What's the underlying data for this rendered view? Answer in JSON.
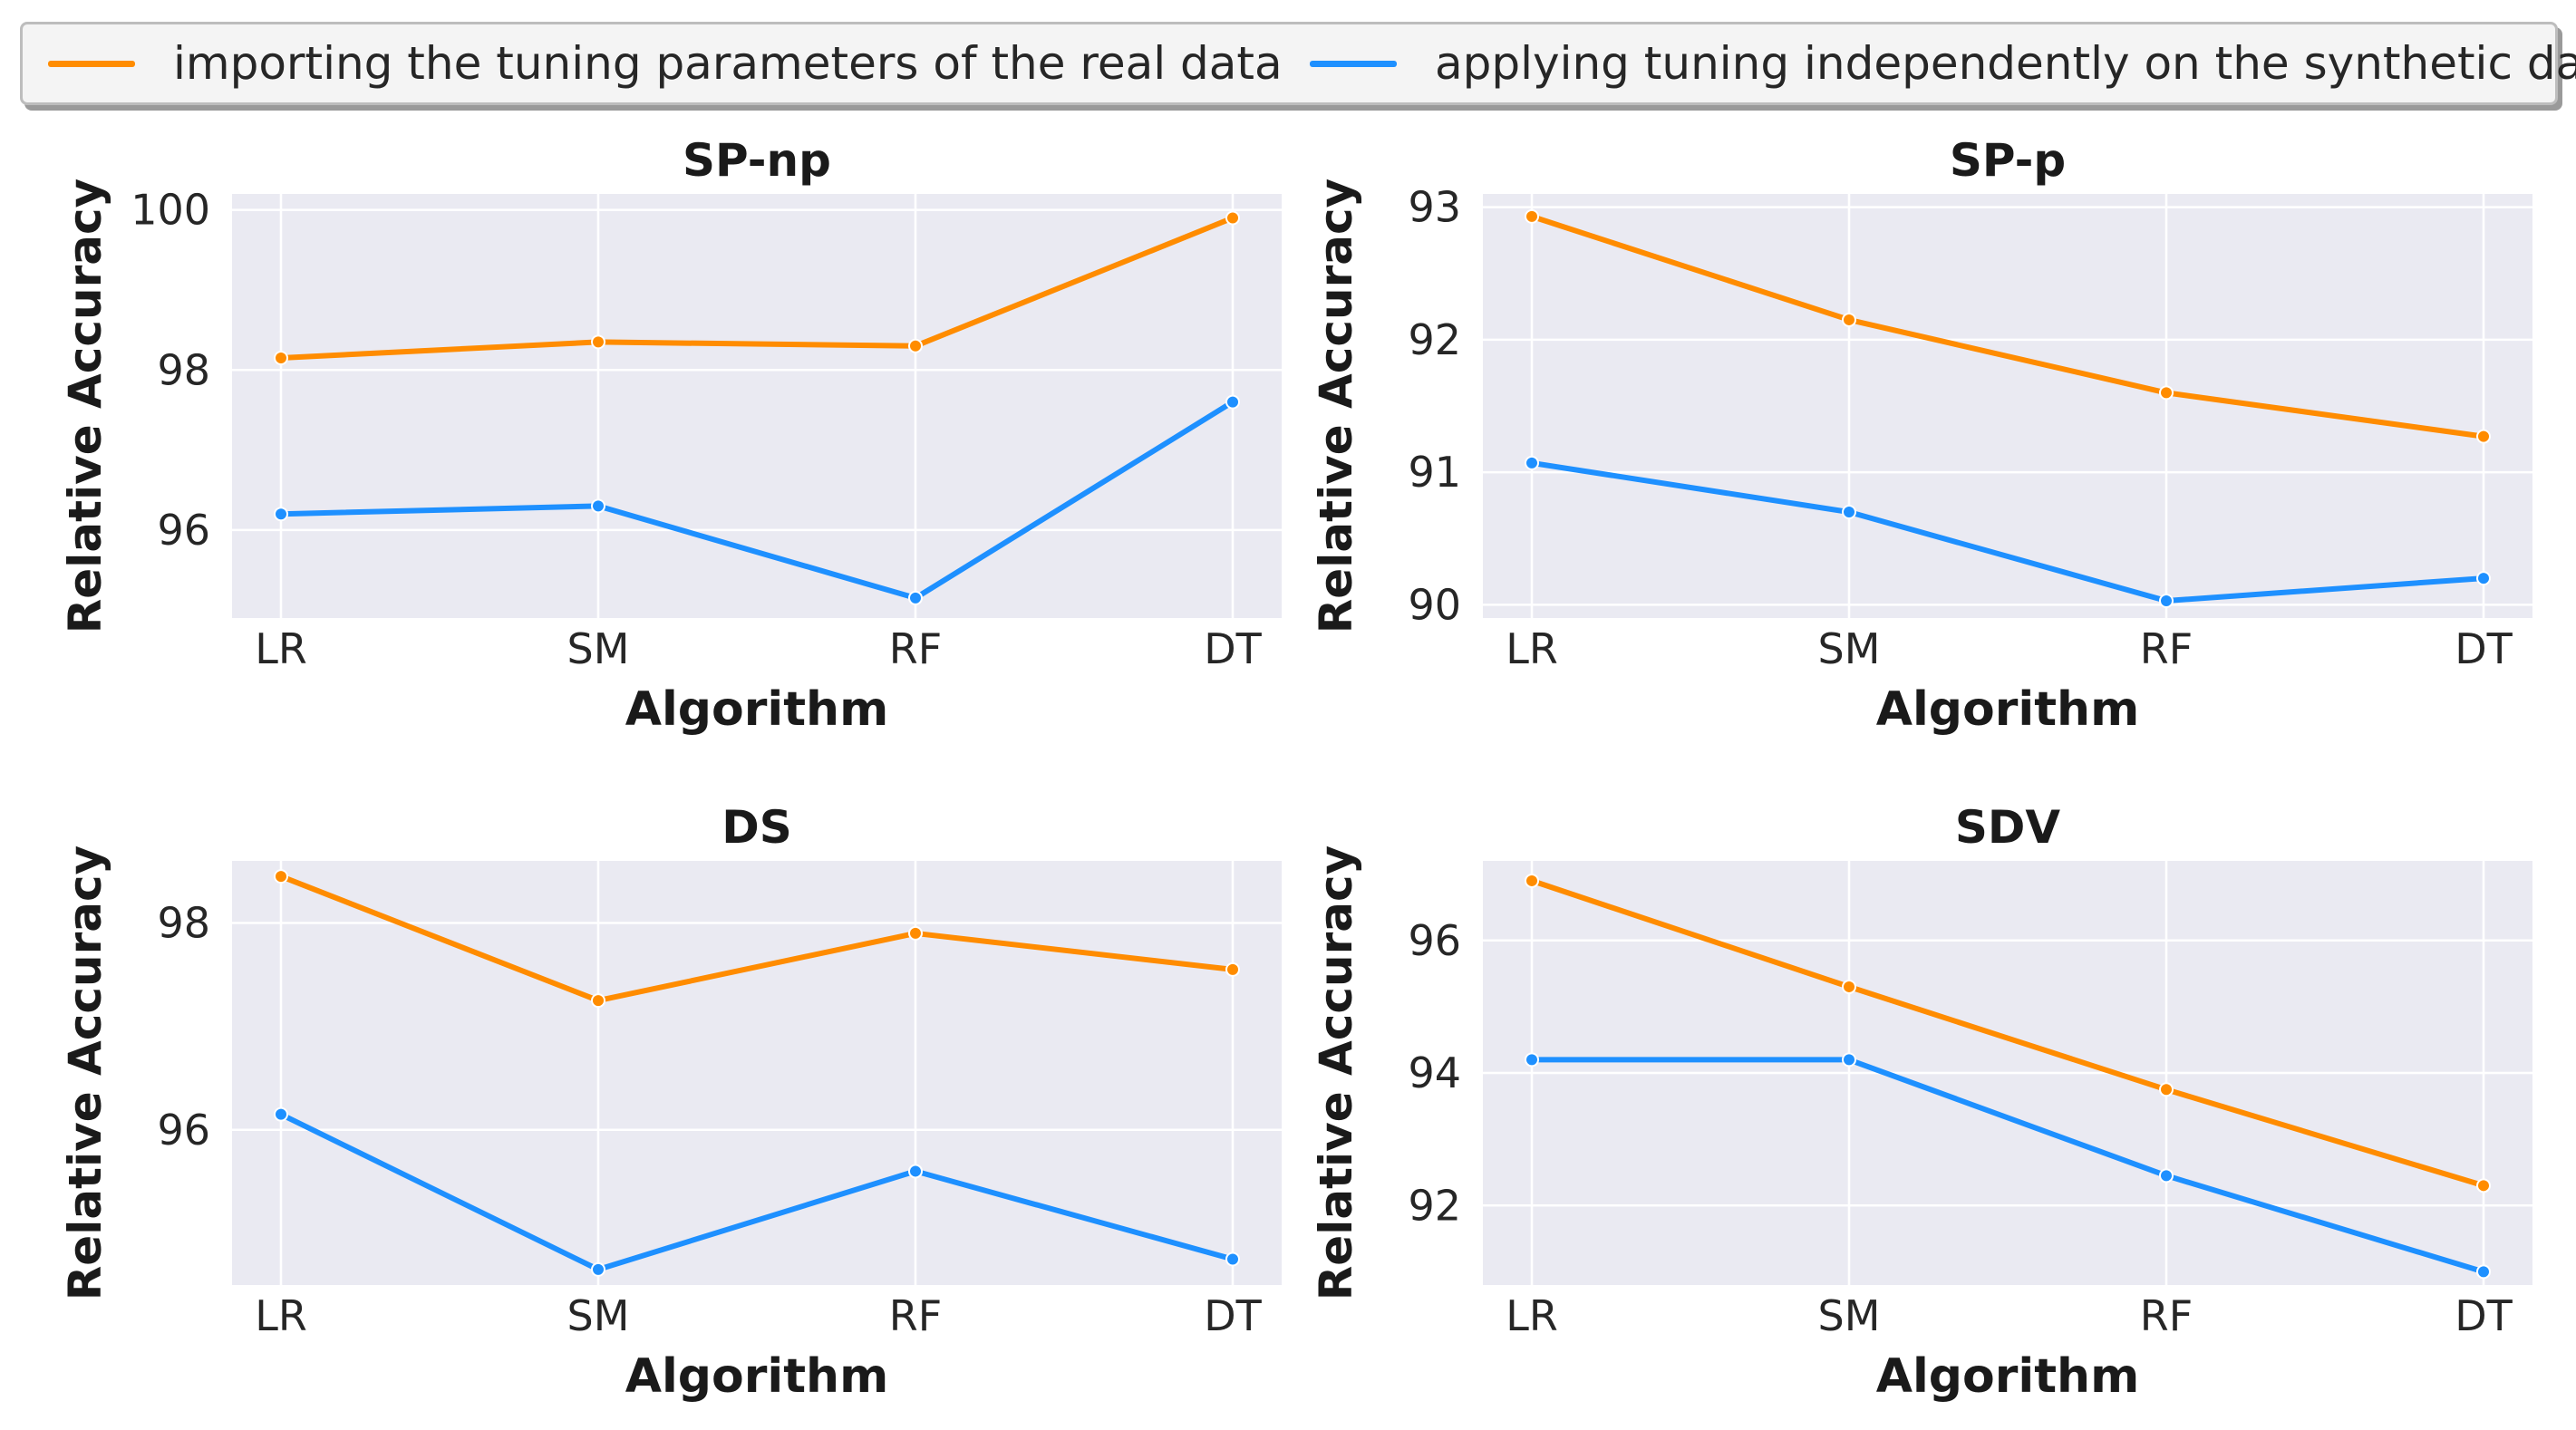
{
  "legend": {
    "items": [
      {
        "label": "importing the tuning parameters of the real data",
        "color": "#ff8c00"
      },
      {
        "label": "applying tuning independently on the synthetic data",
        "color": "#1e90ff"
      }
    ]
  },
  "chart_data": [
    {
      "type": "line",
      "title": "SP-np",
      "xlabel": "Algorithm",
      "ylabel": "Relative Accuracy",
      "categories": [
        "LR",
        "SM",
        "RF",
        "DT"
      ],
      "yticks": [
        96,
        98,
        100
      ],
      "ylim": [
        94.9,
        100.2
      ],
      "series": [
        {
          "name": "importing the tuning parameters of the real data",
          "values": [
            98.15,
            98.35,
            98.3,
            99.9
          ]
        },
        {
          "name": "applying tuning independently on the synthetic data",
          "values": [
            96.2,
            96.3,
            95.15,
            97.6
          ]
        }
      ]
    },
    {
      "type": "line",
      "title": "SP-p",
      "xlabel": "Algorithm",
      "ylabel": "Relative Accuracy",
      "categories": [
        "LR",
        "SM",
        "RF",
        "DT"
      ],
      "yticks": [
        90,
        91,
        92,
        93
      ],
      "ylim": [
        89.9,
        93.1
      ],
      "series": [
        {
          "name": "importing the tuning parameters of the real data",
          "values": [
            92.93,
            92.15,
            91.6,
            91.27
          ]
        },
        {
          "name": "applying tuning independently on the synthetic data",
          "values": [
            91.07,
            90.7,
            90.03,
            90.2
          ]
        }
      ]
    },
    {
      "type": "line",
      "title": "DS",
      "xlabel": "Algorithm",
      "ylabel": "Relative Accuracy",
      "categories": [
        "LR",
        "SM",
        "RF",
        "DT"
      ],
      "yticks": [
        96,
        98
      ],
      "ylim": [
        94.5,
        98.6
      ],
      "series": [
        {
          "name": "importing the tuning parameters of the real data",
          "values": [
            98.45,
            97.25,
            97.9,
            97.55
          ]
        },
        {
          "name": "applying tuning independently on the synthetic data",
          "values": [
            96.15,
            94.65,
            95.6,
            94.75
          ]
        }
      ]
    },
    {
      "type": "line",
      "title": "SDV",
      "xlabel": "Algorithm",
      "ylabel": "Relative Accuracy",
      "categories": [
        "LR",
        "SM",
        "RF",
        "DT"
      ],
      "yticks": [
        92,
        94,
        96
      ],
      "ylim": [
        90.8,
        97.2
      ],
      "series": [
        {
          "name": "importing the tuning parameters of the real data",
          "values": [
            96.9,
            95.3,
            93.75,
            92.3
          ]
        },
        {
          "name": "applying tuning independently on the synthetic data",
          "values": [
            94.2,
            94.2,
            92.45,
            91.0
          ]
        }
      ]
    }
  ]
}
